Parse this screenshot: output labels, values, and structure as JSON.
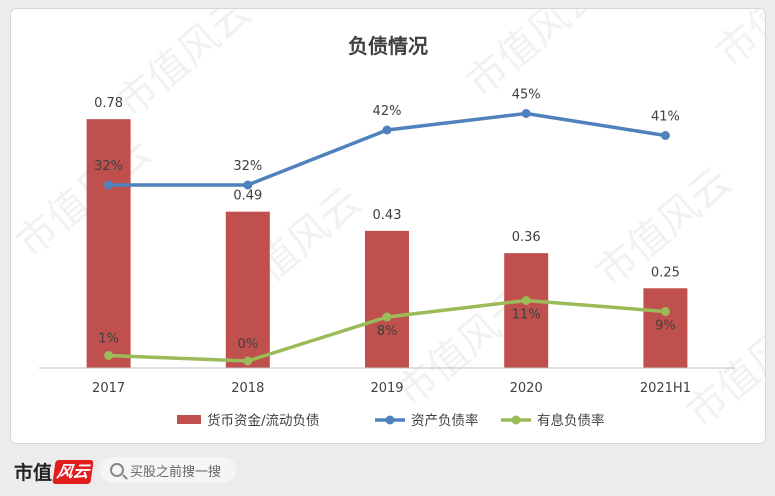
{
  "footer": {
    "brand": "市值",
    "brand_logo_text": "风云",
    "search_placeholder": "买股之前搜一搜"
  },
  "chart_data": {
    "type": "bar",
    "title": "负债情况",
    "categories": [
      "2017",
      "2018",
      "2019",
      "2020",
      "2021H1"
    ],
    "series": [
      {
        "name": "货币资金/流动负债",
        "type": "bar",
        "values": [
          0.78,
          0.49,
          0.43,
          0.36,
          0.25
        ],
        "labels": [
          "0.78",
          "0.49",
          "0.43",
          "0.36",
          "0.25"
        ],
        "color": "#c0504d"
      },
      {
        "name": "资产负债率",
        "type": "line",
        "values": [
          32,
          32,
          42,
          45,
          41
        ],
        "labels": [
          "32%",
          "32%",
          "42%",
          "45%",
          "41%"
        ],
        "color": "#4f81bd"
      },
      {
        "name": "有息负债率",
        "type": "line",
        "values": [
          1,
          0,
          8,
          11,
          9
        ],
        "labels": [
          "1%",
          "0%",
          "8%",
          "11%",
          "9%"
        ],
        "color": "#9bbb59"
      }
    ],
    "legend_position": "bottom",
    "grid": false
  },
  "watermark": "市值风云"
}
